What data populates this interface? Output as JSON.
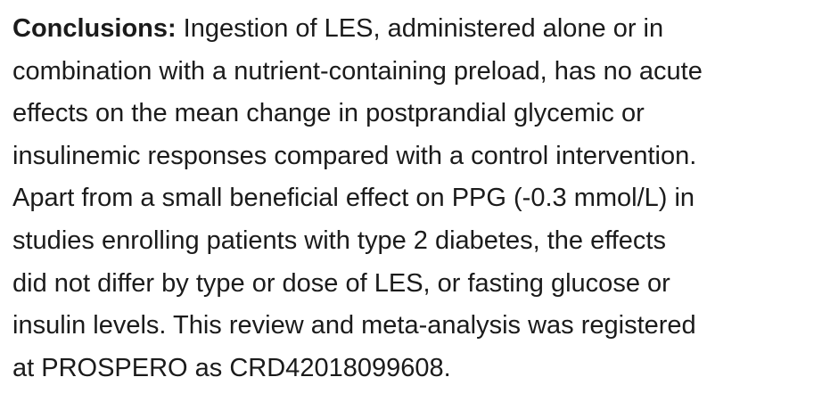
{
  "paragraph": {
    "label": "Conclusions:",
    "lines": [
      "Ingestion of LES, administered alone or in",
      "combination with a nutrient-containing preload, has no acute",
      "effects on the mean change in postprandial glycemic or",
      "insulinemic responses compared with a control intervention.",
      "Apart from a small beneficial effect on PPG (-0.3 mmol/L) in",
      "studies enrolling patients with type 2 diabetes, the effects",
      "did not differ by type or dose of LES, or fasting glucose or",
      "insulin levels. This review and meta-analysis was registered",
      "at PROSPERO as CRD42018099608."
    ]
  }
}
